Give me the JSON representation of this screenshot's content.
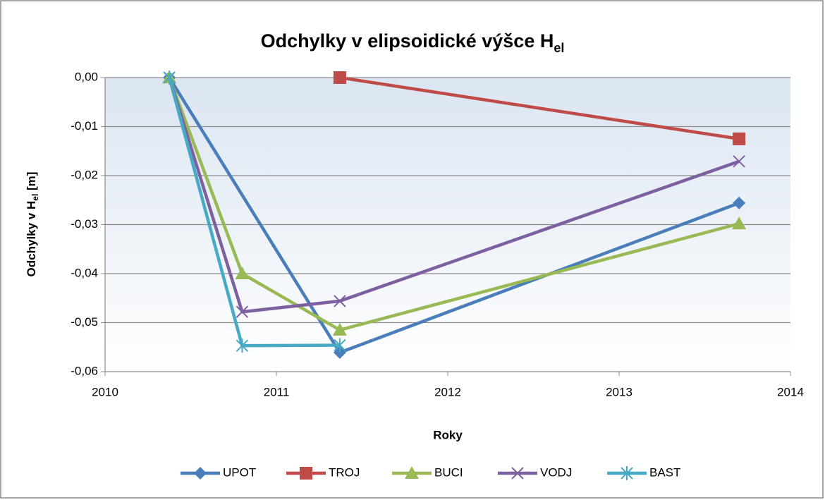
{
  "chart_data": {
    "type": "line",
    "title": "Odchylky v elipsoidické výšce H",
    "title_subscript": "el",
    "ylabel": "Odchylky v H",
    "ylabel_subscript": "el",
    "ylabel_suffix": " [m]",
    "xlabel": "Roky",
    "xlim": [
      2010,
      2014
    ],
    "xticks": [
      2010,
      2011,
      2012,
      2013,
      2014
    ],
    "ylim": [
      -0.06,
      0
    ],
    "yticks": [
      {
        "value": 0,
        "label": "0,00"
      },
      {
        "value": -0.01,
        "label": "-0,01"
      },
      {
        "value": -0.02,
        "label": "-0,02"
      },
      {
        "value": -0.03,
        "label": "-0,03"
      },
      {
        "value": -0.04,
        "label": "-0,04"
      },
      {
        "value": -0.05,
        "label": "-0,05"
      },
      {
        "value": -0.06,
        "label": "-0,06"
      }
    ],
    "grid": true,
    "legend": "bottom",
    "series": [
      {
        "name": "UPOT",
        "color": "#4a7ebb",
        "marker": "diamond",
        "x": [
          2010.375,
          2011.37,
          2013.7
        ],
        "values": [
          0,
          -0.0561,
          -0.0256
        ]
      },
      {
        "name": "TROJ",
        "color": "#be4b48",
        "marker": "square",
        "x": [
          2011.37,
          2013.7
        ],
        "values": [
          0,
          -0.0125
        ]
      },
      {
        "name": "BUCI",
        "color": "#98b954",
        "marker": "triangle",
        "x": [
          2010.375,
          2010.8,
          2011.37,
          2013.7
        ],
        "values": [
          0,
          -0.04,
          -0.0515,
          -0.0298
        ]
      },
      {
        "name": "VODJ",
        "color": "#7d60a0",
        "marker": "cross",
        "x": [
          2010.375,
          2010.8,
          2011.37,
          2013.7
        ],
        "values": [
          0,
          -0.0478,
          -0.0456,
          -0.0171
        ]
      },
      {
        "name": "BAST",
        "color": "#46aac5",
        "marker": "star",
        "x": [
          2010.375,
          2010.8,
          2011.37
        ],
        "values": [
          0,
          -0.0547,
          -0.0546
        ]
      }
    ]
  }
}
